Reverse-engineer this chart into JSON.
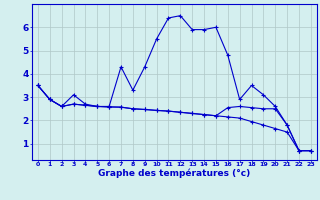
{
  "xlabel": "Graphe des températures (°c)",
  "x_labels": [
    "0",
    "1",
    "2",
    "3",
    "4",
    "5",
    "6",
    "7",
    "8",
    "9",
    "10",
    "11",
    "12",
    "13",
    "14",
    "15",
    "16",
    "17",
    "18",
    "19",
    "20",
    "21",
    "22",
    "23"
  ],
  "y_ticks": [
    1,
    2,
    3,
    4,
    5,
    6
  ],
  "ylim": [
    0.3,
    7.0
  ],
  "xlim": [
    -0.5,
    23.5
  ],
  "bg_color": "#d4efef",
  "line_color": "#0000cc",
  "grid_color": "#b0c8c8",
  "series1": [
    3.5,
    2.9,
    2.6,
    3.1,
    2.7,
    2.6,
    2.6,
    4.3,
    3.3,
    4.3,
    5.5,
    6.4,
    6.5,
    5.9,
    5.9,
    6.0,
    4.8,
    2.9,
    3.5,
    3.1,
    2.6,
    1.8,
    0.7,
    0.7
  ],
  "series2": [
    3.5,
    2.9,
    2.6,
    2.7,
    2.65,
    2.6,
    2.58,
    2.57,
    2.5,
    2.47,
    2.43,
    2.4,
    2.35,
    2.3,
    2.25,
    2.2,
    2.15,
    2.1,
    1.95,
    1.8,
    1.65,
    1.5,
    0.7,
    0.7
  ],
  "series3": [
    3.5,
    2.9,
    2.6,
    2.7,
    2.65,
    2.6,
    2.58,
    2.57,
    2.5,
    2.47,
    2.43,
    2.4,
    2.35,
    2.3,
    2.25,
    2.2,
    2.55,
    2.6,
    2.55,
    2.5,
    2.5,
    1.8,
    0.7,
    0.7
  ]
}
